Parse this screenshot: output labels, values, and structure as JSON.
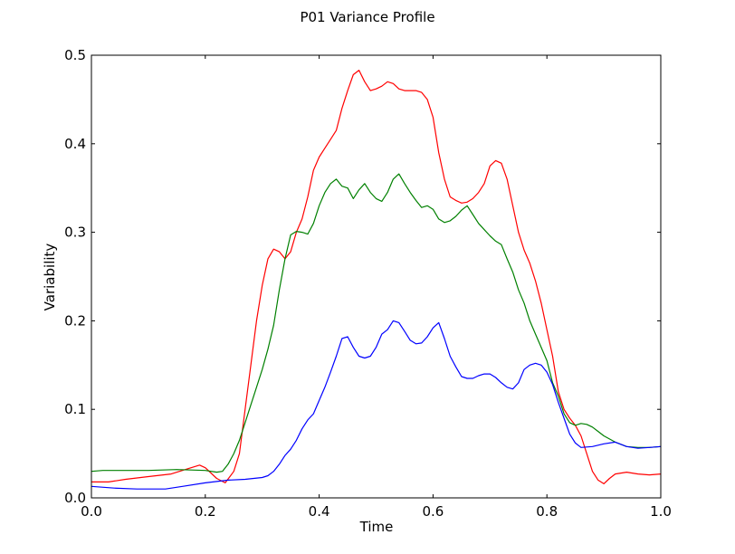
{
  "chart_data": {
    "type": "line",
    "title": "P01 Variance Profile",
    "xlabel": "Time",
    "ylabel": "Variability",
    "xlim": [
      0.0,
      1.0
    ],
    "ylim": [
      0.0,
      0.5
    ],
    "xticks": [
      "0.0",
      "0.2",
      "0.4",
      "0.6",
      "0.8",
      "1.0"
    ],
    "yticks": [
      "0.0",
      "0.1",
      "0.2",
      "0.3",
      "0.4",
      "0.5"
    ],
    "grid": false,
    "legend": "none",
    "series": [
      {
        "color": "#ff0000",
        "points": [
          [
            0.0,
            0.018
          ],
          [
            0.03,
            0.018
          ],
          [
            0.06,
            0.021
          ],
          [
            0.1,
            0.024
          ],
          [
            0.14,
            0.027
          ],
          [
            0.17,
            0.033
          ],
          [
            0.19,
            0.037
          ],
          [
            0.2,
            0.034
          ],
          [
            0.22,
            0.022
          ],
          [
            0.235,
            0.017
          ],
          [
            0.25,
            0.03
          ],
          [
            0.26,
            0.05
          ],
          [
            0.27,
            0.1
          ],
          [
            0.28,
            0.15
          ],
          [
            0.29,
            0.2
          ],
          [
            0.3,
            0.24
          ],
          [
            0.31,
            0.27
          ],
          [
            0.32,
            0.281
          ],
          [
            0.33,
            0.278
          ],
          [
            0.34,
            0.27
          ],
          [
            0.35,
            0.278
          ],
          [
            0.36,
            0.3
          ],
          [
            0.37,
            0.315
          ],
          [
            0.38,
            0.34
          ],
          [
            0.39,
            0.37
          ],
          [
            0.4,
            0.385
          ],
          [
            0.41,
            0.395
          ],
          [
            0.42,
            0.405
          ],
          [
            0.43,
            0.415
          ],
          [
            0.44,
            0.44
          ],
          [
            0.45,
            0.46
          ],
          [
            0.46,
            0.478
          ],
          [
            0.47,
            0.483
          ],
          [
            0.48,
            0.47
          ],
          [
            0.49,
            0.46
          ],
          [
            0.5,
            0.462
          ],
          [
            0.51,
            0.465
          ],
          [
            0.52,
            0.47
          ],
          [
            0.53,
            0.468
          ],
          [
            0.54,
            0.462
          ],
          [
            0.55,
            0.46
          ],
          [
            0.56,
            0.46
          ],
          [
            0.57,
            0.46
          ],
          [
            0.58,
            0.458
          ],
          [
            0.59,
            0.45
          ],
          [
            0.6,
            0.43
          ],
          [
            0.61,
            0.39
          ],
          [
            0.62,
            0.36
          ],
          [
            0.63,
            0.34
          ],
          [
            0.64,
            0.336
          ],
          [
            0.65,
            0.333
          ],
          [
            0.66,
            0.334
          ],
          [
            0.67,
            0.338
          ],
          [
            0.68,
            0.345
          ],
          [
            0.69,
            0.355
          ],
          [
            0.7,
            0.375
          ],
          [
            0.71,
            0.381
          ],
          [
            0.72,
            0.378
          ],
          [
            0.73,
            0.36
          ],
          [
            0.74,
            0.33
          ],
          [
            0.75,
            0.3
          ],
          [
            0.76,
            0.28
          ],
          [
            0.77,
            0.265
          ],
          [
            0.78,
            0.245
          ],
          [
            0.79,
            0.22
          ],
          [
            0.8,
            0.19
          ],
          [
            0.81,
            0.16
          ],
          [
            0.82,
            0.12
          ],
          [
            0.83,
            0.1
          ],
          [
            0.84,
            0.09
          ],
          [
            0.85,
            0.082
          ],
          [
            0.86,
            0.07
          ],
          [
            0.87,
            0.05
          ],
          [
            0.88,
            0.03
          ],
          [
            0.89,
            0.02
          ],
          [
            0.9,
            0.016
          ],
          [
            0.91,
            0.022
          ],
          [
            0.92,
            0.027
          ],
          [
            0.94,
            0.029
          ],
          [
            0.96,
            0.027
          ],
          [
            0.98,
            0.026
          ],
          [
            1.0,
            0.027
          ]
        ]
      },
      {
        "color": "#008000",
        "points": [
          [
            0.0,
            0.03
          ],
          [
            0.02,
            0.031
          ],
          [
            0.05,
            0.031
          ],
          [
            0.1,
            0.031
          ],
          [
            0.15,
            0.032
          ],
          [
            0.2,
            0.031
          ],
          [
            0.22,
            0.029
          ],
          [
            0.23,
            0.03
          ],
          [
            0.24,
            0.038
          ],
          [
            0.25,
            0.05
          ],
          [
            0.26,
            0.065
          ],
          [
            0.27,
            0.085
          ],
          [
            0.28,
            0.105
          ],
          [
            0.29,
            0.125
          ],
          [
            0.3,
            0.145
          ],
          [
            0.31,
            0.168
          ],
          [
            0.32,
            0.195
          ],
          [
            0.33,
            0.235
          ],
          [
            0.34,
            0.27
          ],
          [
            0.35,
            0.297
          ],
          [
            0.36,
            0.301
          ],
          [
            0.37,
            0.3
          ],
          [
            0.38,
            0.298
          ],
          [
            0.39,
            0.31
          ],
          [
            0.4,
            0.33
          ],
          [
            0.41,
            0.345
          ],
          [
            0.42,
            0.355
          ],
          [
            0.43,
            0.36
          ],
          [
            0.44,
            0.352
          ],
          [
            0.45,
            0.35
          ],
          [
            0.46,
            0.338
          ],
          [
            0.47,
            0.348
          ],
          [
            0.48,
            0.355
          ],
          [
            0.49,
            0.345
          ],
          [
            0.5,
            0.338
          ],
          [
            0.51,
            0.335
          ],
          [
            0.52,
            0.345
          ],
          [
            0.53,
            0.36
          ],
          [
            0.54,
            0.366
          ],
          [
            0.55,
            0.355
          ],
          [
            0.56,
            0.345
          ],
          [
            0.57,
            0.336
          ],
          [
            0.58,
            0.328
          ],
          [
            0.59,
            0.33
          ],
          [
            0.6,
            0.326
          ],
          [
            0.61,
            0.315
          ],
          [
            0.62,
            0.311
          ],
          [
            0.63,
            0.313
          ],
          [
            0.64,
            0.318
          ],
          [
            0.65,
            0.325
          ],
          [
            0.66,
            0.33
          ],
          [
            0.67,
            0.32
          ],
          [
            0.68,
            0.31
          ],
          [
            0.69,
            0.303
          ],
          [
            0.7,
            0.296
          ],
          [
            0.71,
            0.29
          ],
          [
            0.72,
            0.286
          ],
          [
            0.73,
            0.27
          ],
          [
            0.74,
            0.255
          ],
          [
            0.75,
            0.235
          ],
          [
            0.76,
            0.22
          ],
          [
            0.77,
            0.2
          ],
          [
            0.78,
            0.185
          ],
          [
            0.79,
            0.17
          ],
          [
            0.8,
            0.155
          ],
          [
            0.81,
            0.13
          ],
          [
            0.82,
            0.115
          ],
          [
            0.83,
            0.095
          ],
          [
            0.84,
            0.085
          ],
          [
            0.85,
            0.082
          ],
          [
            0.86,
            0.084
          ],
          [
            0.87,
            0.083
          ],
          [
            0.88,
            0.08
          ],
          [
            0.89,
            0.075
          ],
          [
            0.9,
            0.07
          ],
          [
            0.92,
            0.063
          ],
          [
            0.94,
            0.058
          ],
          [
            0.96,
            0.057
          ],
          [
            0.98,
            0.057
          ],
          [
            1.0,
            0.058
          ]
        ]
      },
      {
        "color": "#0000ff",
        "points": [
          [
            0.0,
            0.013
          ],
          [
            0.04,
            0.011
          ],
          [
            0.08,
            0.01
          ],
          [
            0.13,
            0.01
          ],
          [
            0.16,
            0.013
          ],
          [
            0.2,
            0.017
          ],
          [
            0.24,
            0.02
          ],
          [
            0.27,
            0.021
          ],
          [
            0.3,
            0.023
          ],
          [
            0.31,
            0.025
          ],
          [
            0.32,
            0.03
          ],
          [
            0.33,
            0.038
          ],
          [
            0.34,
            0.048
          ],
          [
            0.35,
            0.055
          ],
          [
            0.36,
            0.065
          ],
          [
            0.37,
            0.078
          ],
          [
            0.38,
            0.088
          ],
          [
            0.39,
            0.095
          ],
          [
            0.4,
            0.11
          ],
          [
            0.41,
            0.125
          ],
          [
            0.42,
            0.142
          ],
          [
            0.43,
            0.16
          ],
          [
            0.44,
            0.18
          ],
          [
            0.45,
            0.182
          ],
          [
            0.46,
            0.17
          ],
          [
            0.47,
            0.16
          ],
          [
            0.48,
            0.158
          ],
          [
            0.49,
            0.16
          ],
          [
            0.5,
            0.17
          ],
          [
            0.51,
            0.185
          ],
          [
            0.52,
            0.19
          ],
          [
            0.53,
            0.2
          ],
          [
            0.54,
            0.198
          ],
          [
            0.55,
            0.188
          ],
          [
            0.56,
            0.178
          ],
          [
            0.57,
            0.174
          ],
          [
            0.58,
            0.175
          ],
          [
            0.59,
            0.182
          ],
          [
            0.6,
            0.192
          ],
          [
            0.61,
            0.198
          ],
          [
            0.62,
            0.18
          ],
          [
            0.63,
            0.16
          ],
          [
            0.64,
            0.148
          ],
          [
            0.65,
            0.137
          ],
          [
            0.66,
            0.135
          ],
          [
            0.67,
            0.135
          ],
          [
            0.68,
            0.138
          ],
          [
            0.69,
            0.14
          ],
          [
            0.7,
            0.14
          ],
          [
            0.71,
            0.136
          ],
          [
            0.72,
            0.13
          ],
          [
            0.73,
            0.125
          ],
          [
            0.74,
            0.123
          ],
          [
            0.75,
            0.13
          ],
          [
            0.76,
            0.145
          ],
          [
            0.77,
            0.15
          ],
          [
            0.78,
            0.152
          ],
          [
            0.79,
            0.15
          ],
          [
            0.8,
            0.142
          ],
          [
            0.81,
            0.128
          ],
          [
            0.82,
            0.108
          ],
          [
            0.83,
            0.09
          ],
          [
            0.84,
            0.072
          ],
          [
            0.85,
            0.062
          ],
          [
            0.86,
            0.057
          ],
          [
            0.88,
            0.058
          ],
          [
            0.9,
            0.061
          ],
          [
            0.92,
            0.063
          ],
          [
            0.94,
            0.058
          ],
          [
            0.96,
            0.056
          ],
          [
            0.98,
            0.057
          ],
          [
            1.0,
            0.058
          ]
        ]
      }
    ]
  }
}
